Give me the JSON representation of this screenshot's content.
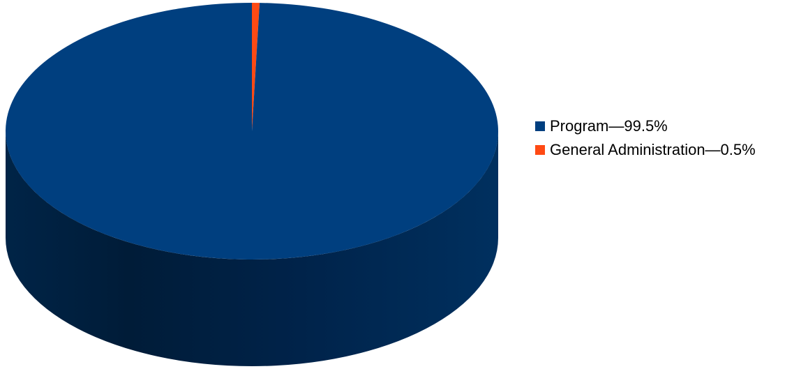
{
  "chart_data": {
    "type": "pie",
    "style": "3d",
    "categories": [
      "Program",
      "General Administration"
    ],
    "values": [
      99.5,
      0.5
    ],
    "unit": "%",
    "colors": [
      "#003f7f",
      "#ff4a14"
    ],
    "legend_position": "right",
    "legend": [
      {
        "label": "Program—99.5%",
        "color": "#003f7f"
      },
      {
        "label": "General Administration—0.5%",
        "color": "#ff4a14"
      }
    ]
  }
}
